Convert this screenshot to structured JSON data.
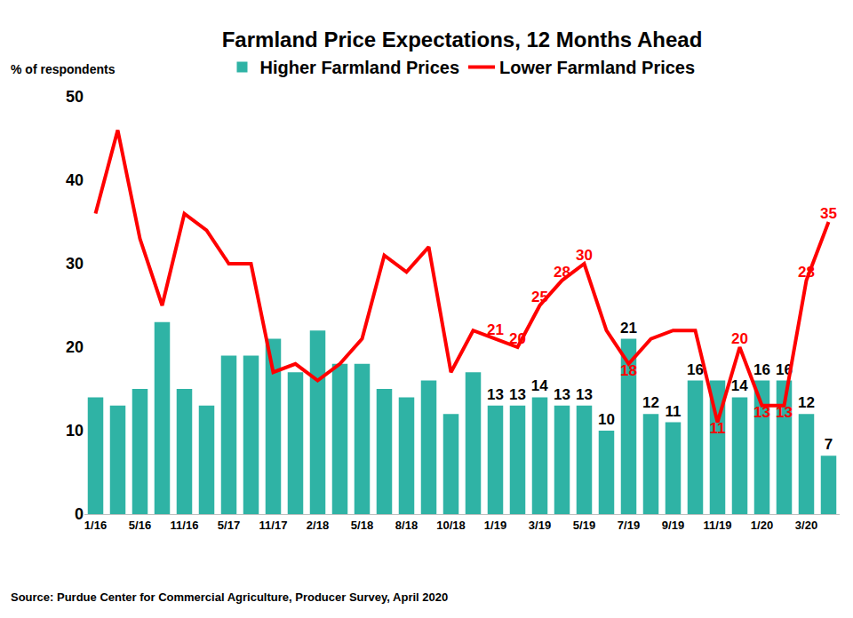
{
  "chart_data": {
    "type": "bar",
    "title": "Farmland Price Expectations, 12 Months Ahead",
    "ylabel": "% of respondents",
    "note": "Source: Purdue Center for Commercial Agriculture, Producer Survey, April 2020",
    "categories": [
      "1/16",
      null,
      "5/16",
      null,
      "11/16",
      null,
      "5/17",
      null,
      "11/17",
      null,
      "2/18",
      null,
      "5/18",
      null,
      "8/18",
      null,
      "10/18",
      null,
      "1/19",
      null,
      "3/19",
      null,
      "5/19",
      null,
      "7/19",
      null,
      "9/19",
      null,
      "11/19",
      null,
      "1/20",
      null,
      "3/20",
      null
    ],
    "series": [
      {
        "name": "Higher Farmland Prices",
        "type": "bar",
        "color": "#2fb3a5",
        "values": [
          14,
          13,
          15,
          23,
          15,
          13,
          19,
          19,
          21,
          17,
          22,
          18,
          18,
          15,
          14,
          16,
          12,
          17,
          13,
          13,
          14,
          13,
          13,
          10,
          21,
          12,
          11,
          16,
          16,
          14,
          16,
          16,
          12,
          7
        ],
        "value_labels": [
          null,
          null,
          null,
          null,
          null,
          null,
          null,
          null,
          null,
          null,
          null,
          null,
          null,
          null,
          null,
          null,
          null,
          null,
          "13",
          "13",
          "14",
          "13",
          "13",
          "10",
          "21",
          "12",
          "11",
          "16",
          null,
          "14",
          "16",
          "16",
          "12",
          "7"
        ]
      },
      {
        "name": "Lower Farmland Prices",
        "type": "line",
        "color": "#ff0000",
        "values": [
          36,
          46,
          33,
          25,
          36,
          34,
          30,
          30,
          17,
          18,
          16,
          18,
          21,
          31,
          29,
          32,
          17,
          22,
          21,
          20,
          25,
          28,
          30,
          22,
          18,
          21,
          22,
          22,
          11,
          20,
          13,
          13,
          28,
          35
        ],
        "value_labels": [
          null,
          null,
          null,
          null,
          null,
          null,
          null,
          null,
          null,
          null,
          null,
          null,
          null,
          null,
          null,
          null,
          null,
          null,
          "21",
          "20",
          "25",
          "28",
          "30",
          null,
          "18",
          null,
          null,
          null,
          "11",
          "20",
          "13",
          "13",
          "28",
          "35"
        ]
      }
    ],
    "ylim": [
      0,
      50
    ],
    "yticks": [
      0,
      10,
      20,
      30,
      40,
      50
    ],
    "grid": false,
    "legend": "top",
    "data_labels": true
  }
}
